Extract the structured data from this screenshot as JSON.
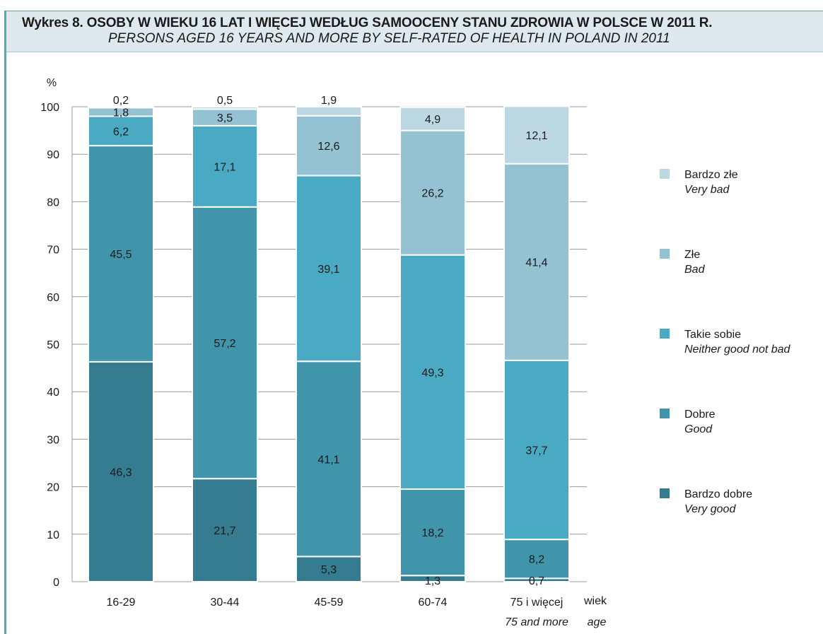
{
  "header": {
    "title": "Wykres 8. OSOBY W WIEKU 16 LAT I WIĘCEJ WEDŁUG SAMOOCENY STANU ZDROWIA W POLSCE W 2011 R.",
    "subtitle": "PERSONS AGED 16 YEARS AND MORE BY SELF-RATED OF HEALTH IN POLAND IN 2011"
  },
  "chart_data": {
    "type": "bar",
    "stacked": true,
    "ylabel": "%",
    "xlabel": "wiek",
    "xlabel_en": "age",
    "ylim": [
      0,
      100
    ],
    "yticks": [
      0,
      10,
      20,
      30,
      40,
      50,
      60,
      70,
      80,
      90,
      100
    ],
    "grid": true,
    "legend_position": "right",
    "categories": [
      "16-29",
      "30-44",
      "45-59",
      "60-74",
      "75 i więcej"
    ],
    "categories_en": [
      "",
      "",
      "",
      "",
      "75 and more"
    ],
    "series": [
      {
        "name": "Bardzo dobre",
        "name_en": "Very good",
        "color": "#367c90",
        "values": [
          46.3,
          21.7,
          5.3,
          1.3,
          0.7
        ],
        "labels": [
          "46,3",
          "21,7",
          "5,3",
          "1,3",
          "0,7"
        ]
      },
      {
        "name": "Dobre",
        "name_en": "Good",
        "color": "#4095ab",
        "values": [
          45.5,
          57.2,
          41.1,
          18.2,
          8.2
        ],
        "labels": [
          "45,5",
          "57,2",
          "41,1",
          "18,2",
          "8,2"
        ]
      },
      {
        "name": "Takie sobie",
        "name_en": "Neither good not bad",
        "color": "#4aaac4",
        "values": [
          6.2,
          17.1,
          39.1,
          49.3,
          37.7
        ],
        "labels": [
          "6,2",
          "17,1",
          "39,1",
          "49,3",
          "37,7"
        ]
      },
      {
        "name": "Złe",
        "name_en": "Bad",
        "color": "#94c2d3",
        "values": [
          1.8,
          3.5,
          12.6,
          26.2,
          41.4
        ],
        "labels": [
          "1,8",
          "3,5",
          "12,6",
          "26,2",
          "41,4"
        ]
      },
      {
        "name": "Bardzo złe",
        "name_en": "Very bad",
        "color": "#bcd8e3",
        "values": [
          0.2,
          0.5,
          1.9,
          4.9,
          12.1
        ],
        "labels": [
          "0,2",
          "0,5",
          "1,9",
          "4,9",
          "12,1"
        ]
      }
    ]
  }
}
